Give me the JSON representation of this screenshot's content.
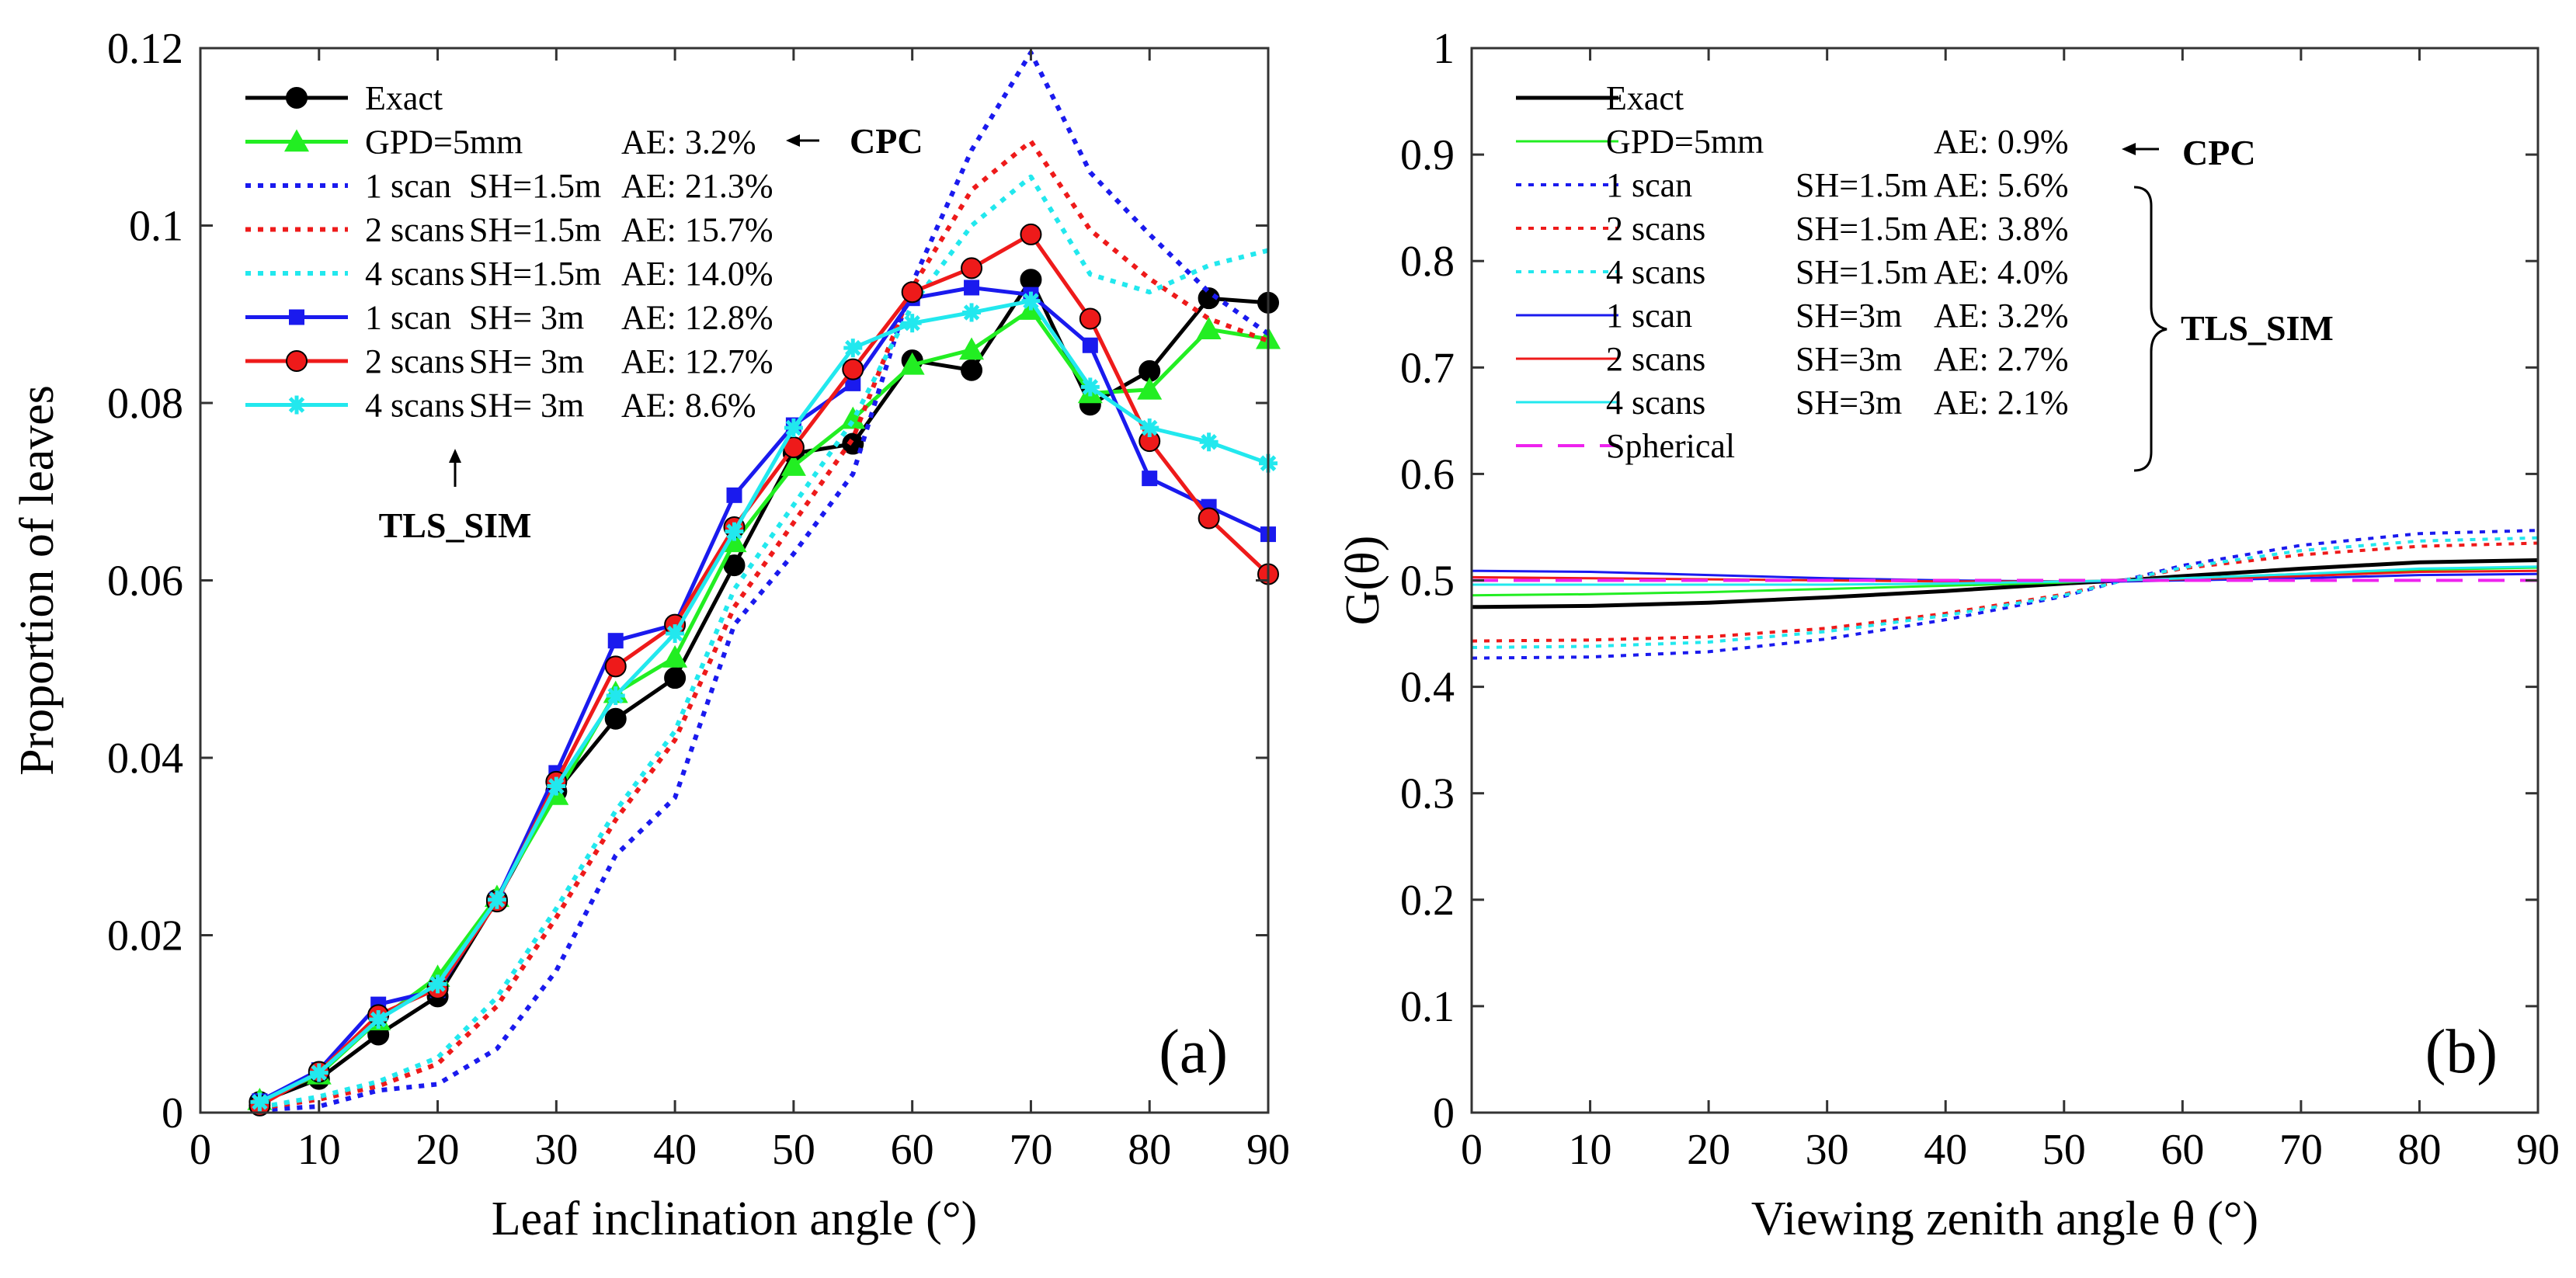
{
  "chart_data": [
    {
      "type": "line",
      "panel_label": "(a)",
      "title": "",
      "xlabel": "Leaf inclination angle (°)",
      "ylabel": "Proportion of leaves",
      "xlim": [
        0,
        90
      ],
      "ylim": [
        0,
        0.12
      ],
      "xticks": [
        "0",
        "10",
        "20",
        "30",
        "40",
        "50",
        "60",
        "70",
        "80",
        "90"
      ],
      "yticks": [
        "0",
        "0.02",
        "0.04",
        "0.06",
        "0.08",
        "0.1",
        "0.12"
      ],
      "grid": false,
      "legend_position": "top-left",
      "x": [
        5,
        10,
        15,
        20,
        25,
        30,
        35,
        40,
        45,
        50,
        55,
        60,
        65,
        70,
        75,
        80,
        85,
        90
      ],
      "series": [
        {
          "name": "Exact",
          "legend": [
            "Exact",
            "",
            ""
          ],
          "color": "#000000",
          "dash": "solid",
          "marker": "circle",
          "values": [
            0.0012,
            0.0038,
            0.0088,
            0.0131,
            0.024,
            0.0362,
            0.0444,
            0.049,
            0.0617,
            0.0743,
            0.0754,
            0.0848,
            0.0837,
            0.0939,
            0.0798,
            0.0836,
            0.0918,
            0.0913
          ]
        },
        {
          "name": "GPD=5mm",
          "legend": [
            "GPD=5mm",
            "",
            "AE: 3.2%"
          ],
          "color": "#22ee22",
          "dash": "solid",
          "marker": "triangle",
          "values": [
            0.0014,
            0.0043,
            0.0104,
            0.0153,
            0.0243,
            0.0358,
            0.0473,
            0.0513,
            0.0643,
            0.0729,
            0.0782,
            0.0843,
            0.086,
            0.0905,
            0.0811,
            0.0815,
            0.0883,
            0.0872
          ]
        },
        {
          "name": "1 scan SH=1.5m",
          "legend": [
            "1 scan",
            "SH=1.5m",
            "AE: 21.3%"
          ],
          "color": "#1a1aee",
          "dash": "dot",
          "marker": "none",
          "values": [
            0.0003,
            0.0007,
            0.0025,
            0.0032,
            0.0072,
            0.016,
            0.029,
            0.0355,
            0.055,
            0.063,
            0.072,
            0.0935,
            0.1085,
            0.1195,
            0.106,
            0.099,
            0.0925,
            0.0878
          ]
        },
        {
          "name": "2 scans SH=1.5m",
          "legend": [
            "2 scans",
            "SH=1.5m",
            "AE: 15.7%"
          ],
          "color": "#ee1a1a",
          "dash": "dot",
          "marker": "none",
          "values": [
            0.0005,
            0.0015,
            0.003,
            0.0055,
            0.012,
            0.022,
            0.033,
            0.042,
            0.057,
            0.0665,
            0.076,
            0.093,
            0.104,
            0.1095,
            0.0995,
            0.094,
            0.0895,
            0.087
          ]
        },
        {
          "name": "4 scans SH=1.5m",
          "legend": [
            "4 scans",
            "SH=1.5m",
            "AE: 14.0%"
          ],
          "color": "#22e8ee",
          "dash": "dot",
          "marker": "none",
          "values": [
            0.0006,
            0.0018,
            0.0035,
            0.0062,
            0.013,
            0.023,
            0.034,
            0.043,
            0.059,
            0.0685,
            0.078,
            0.091,
            0.1,
            0.1055,
            0.0945,
            0.0925,
            0.0955,
            0.0972
          ]
        },
        {
          "name": "1 scan SH=3m",
          "legend": [
            "1 scan",
            "SH= 3m",
            "AE: 12.8%"
          ],
          "color": "#1a1aee",
          "dash": "solid",
          "marker": "square",
          "values": [
            0.0013,
            0.0048,
            0.0122,
            0.0138,
            0.024,
            0.0383,
            0.0532,
            0.055,
            0.0696,
            0.0775,
            0.0822,
            0.0918,
            0.093,
            0.0922,
            0.0865,
            0.0715,
            0.0683,
            0.0652
          ]
        },
        {
          "name": "2 scans SH=3m",
          "legend": [
            "2 scans",
            "SH= 3m",
            "AE: 12.7%"
          ],
          "color": "#ee1a1a",
          "dash": "solid",
          "marker": "circle",
          "values": [
            0.0008,
            0.0046,
            0.011,
            0.014,
            0.0238,
            0.0373,
            0.0503,
            0.055,
            0.066,
            0.075,
            0.0838,
            0.0925,
            0.0952,
            0.099,
            0.0895,
            0.0757,
            0.067,
            0.0607
          ]
        },
        {
          "name": "4 scans SH=3m",
          "legend": [
            "4 scans",
            "SH= 3m",
            "AE: 8.6%"
          ],
          "color": "#22e8ee",
          "dash": "solid",
          "marker": "star",
          "values": [
            0.0012,
            0.0045,
            0.0105,
            0.0145,
            0.024,
            0.0368,
            0.047,
            0.054,
            0.0655,
            0.0772,
            0.0862,
            0.089,
            0.0902,
            0.0915,
            0.0818,
            0.0772,
            0.0756,
            0.0732
          ]
        }
      ],
      "annotations": [
        {
          "text": "CPC",
          "role": "arrow-label"
        },
        {
          "text": "TLS_SIM",
          "role": "arrow-label"
        }
      ]
    },
    {
      "type": "line",
      "panel_label": "(b)",
      "title": "",
      "xlabel": "Viewing zenith angle θ (°)",
      "ylabel": "G(θ)",
      "xlim": [
        0,
        90
      ],
      "ylim": [
        0,
        1
      ],
      "xticks": [
        "0",
        "10",
        "20",
        "30",
        "40",
        "50",
        "60",
        "70",
        "80",
        "90"
      ],
      "yticks": [
        "0",
        "0.1",
        "0.2",
        "0.3",
        "0.4",
        "0.5",
        "0.6",
        "0.7",
        "0.8",
        "0.9",
        "1"
      ],
      "grid": false,
      "legend_position": "top-left",
      "x": [
        0,
        10,
        20,
        30,
        40,
        50,
        55,
        60,
        70,
        80,
        90
      ],
      "series": [
        {
          "name": "Exact",
          "legend": [
            "Exact",
            "",
            ""
          ],
          "color": "#000000",
          "dash": "solid",
          "width": 5,
          "values": [
            0.475,
            0.476,
            0.479,
            0.484,
            0.49,
            0.497,
            0.5,
            0.504,
            0.511,
            0.517,
            0.519
          ]
        },
        {
          "name": "GPD=5mm",
          "legend": [
            "GPD=5mm",
            "",
            "AE: 0.9%"
          ],
          "color": "#22ee22",
          "dash": "solid",
          "width": 3,
          "values": [
            0.486,
            0.487,
            0.489,
            0.492,
            0.495,
            0.498,
            0.5,
            0.502,
            0.506,
            0.51,
            0.512
          ]
        },
        {
          "name": "1 scan SH=1.5m",
          "legend": [
            "1 scan",
            "SH=1.5m",
            "AE: 5.6%"
          ],
          "color": "#1a1aee",
          "dash": "dot",
          "width": 4,
          "values": [
            0.427,
            0.428,
            0.433,
            0.445,
            0.463,
            0.485,
            0.5,
            0.514,
            0.533,
            0.544,
            0.547
          ]
        },
        {
          "name": "2 scans SH=1.5m",
          "legend": [
            "2 scans",
            "SH=1.5m",
            "AE: 3.8%"
          ],
          "color": "#ee1a1a",
          "dash": "dot",
          "width": 4,
          "values": [
            0.443,
            0.444,
            0.447,
            0.455,
            0.469,
            0.487,
            0.5,
            0.511,
            0.524,
            0.532,
            0.535
          ]
        },
        {
          "name": "4 scans SH=1.5m",
          "legend": [
            "4 scans",
            "SH=1.5m",
            "AE: 4.0%"
          ],
          "color": "#22e8ee",
          "dash": "dot",
          "width": 4,
          "values": [
            0.437,
            0.438,
            0.442,
            0.452,
            0.467,
            0.486,
            0.5,
            0.512,
            0.528,
            0.537,
            0.54
          ]
        },
        {
          "name": "1 scan SH=3m",
          "legend": [
            "1 scan",
            "SH=3m",
            "AE: 3.2%"
          ],
          "color": "#1a1aee",
          "dash": "solid",
          "width": 3,
          "values": [
            0.509,
            0.508,
            0.505,
            0.502,
            0.5,
            0.499,
            0.499,
            0.5,
            0.502,
            0.505,
            0.506
          ]
        },
        {
          "name": "2 scans SH=3m",
          "legend": [
            "2 scans",
            "SH=3m",
            "AE: 2.7%"
          ],
          "color": "#ee1a1a",
          "dash": "solid",
          "width": 3,
          "values": [
            0.503,
            0.502,
            0.501,
            0.5,
            0.499,
            0.499,
            0.5,
            0.501,
            0.504,
            0.508,
            0.509
          ]
        },
        {
          "name": "4 scans SH=3m",
          "legend": [
            "4 scans",
            "SH=3m",
            "AE: 2.1%"
          ],
          "color": "#22e8ee",
          "dash": "solid",
          "width": 3,
          "values": [
            0.496,
            0.496,
            0.496,
            0.496,
            0.497,
            0.499,
            0.5,
            0.502,
            0.506,
            0.511,
            0.513
          ]
        },
        {
          "name": "Spherical",
          "legend": [
            "Spherical",
            "",
            ""
          ],
          "color": "#ee22ee",
          "dash": "dash",
          "width": 4,
          "values": [
            0.5,
            0.5,
            0.5,
            0.5,
            0.5,
            0.5,
            0.5,
            0.5,
            0.5,
            0.5,
            0.5
          ]
        }
      ],
      "annotations": [
        {
          "text": "CPC",
          "role": "arrow-label"
        },
        {
          "text": "TLS_SIM",
          "role": "brace-label"
        }
      ]
    }
  ]
}
